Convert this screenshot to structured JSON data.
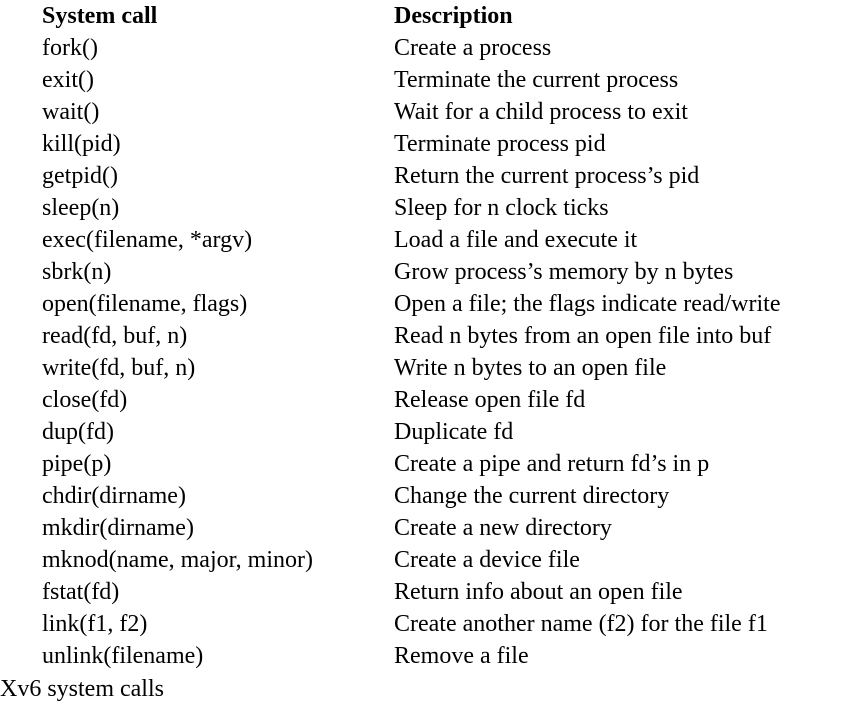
{
  "table": {
    "headers": {
      "call": "System call",
      "description": "Description"
    },
    "rows": [
      {
        "call": "fork()",
        "description": "Create a process"
      },
      {
        "call": "exit()",
        "description": "Terminate the current process"
      },
      {
        "call": "wait()",
        "description": "Wait for a child process to exit"
      },
      {
        "call": "kill(pid)",
        "description": "Terminate process pid"
      },
      {
        "call": "getpid()",
        "description": "Return the current process’s pid"
      },
      {
        "call": "sleep(n)",
        "description": "Sleep for n clock ticks"
      },
      {
        "call": "exec(filename, *argv)",
        "description": "Load a file and execute it"
      },
      {
        "call": "sbrk(n)",
        "description": "Grow process’s memory by n bytes"
      },
      {
        "call": "open(filename, flags)",
        "description": "Open a file; the flags indicate read/write"
      },
      {
        "call": "read(fd, buf, n)",
        "description": "Read n bytes from an open file into buf"
      },
      {
        "call": "write(fd, buf, n)",
        "description": "Write n bytes to an open file"
      },
      {
        "call": "close(fd)",
        "description": "Release open file fd"
      },
      {
        "call": "dup(fd)",
        "description": "Duplicate fd"
      },
      {
        "call": "pipe(p)",
        "description": "Create a pipe and return fd’s in p"
      },
      {
        "call": "chdir(dirname)",
        "description": "Change the current directory"
      },
      {
        "call": "mkdir(dirname)",
        "description": "Create a new directory"
      },
      {
        "call": "mknod(name, major, minor)",
        "description": "Create a device file"
      },
      {
        "call": "fstat(fd)",
        "description": "Return info about an open file"
      },
      {
        "call": "link(f1, f2)",
        "description": "Create another name (f2) for the file f1"
      },
      {
        "call": "unlink(filename)",
        "description": "Remove a file"
      }
    ]
  },
  "caption": "Xv6 system calls"
}
